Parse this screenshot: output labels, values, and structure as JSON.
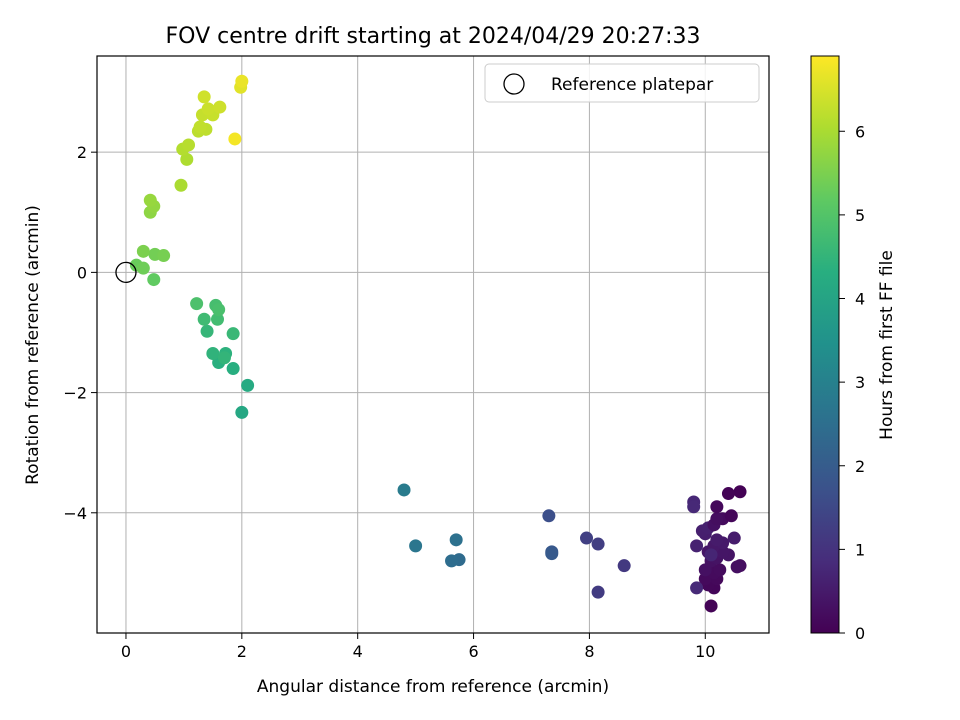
{
  "chart_data": {
    "type": "scatter",
    "title": "FOV centre drift starting at 2024/04/29 20:27:33",
    "xlabel": "Angular distance from reference (arcmin)",
    "ylabel": "Rotation from reference (arcmin)",
    "xlim": [
      -0.5,
      11.1
    ],
    "ylim": [
      -6.0,
      3.6
    ],
    "xticks": [
      0,
      2,
      4,
      6,
      8,
      10
    ],
    "yticks": [
      -4,
      -2,
      0,
      2
    ],
    "grid": true,
    "legend": {
      "position": "top-right",
      "entries": [
        "Reference platepar"
      ]
    },
    "reference_point": {
      "x": 0,
      "y": 0,
      "label": "Reference platepar"
    },
    "colorbar": {
      "label": "Hours from first FF file",
      "colormap": "viridis",
      "range": [
        0,
        6.9
      ],
      "ticks": [
        0,
        1,
        2,
        3,
        4,
        5,
        6
      ]
    },
    "points": [
      {
        "x": 10.1,
        "y": -5.55,
        "c": 0.05
      },
      {
        "x": 10.15,
        "y": -5.25,
        "c": 0.1
      },
      {
        "x": 10.05,
        "y": -5.2,
        "c": 0.12
      },
      {
        "x": 10.2,
        "y": -5.1,
        "c": 0.15
      },
      {
        "x": 10.0,
        "y": -5.1,
        "c": 0.18
      },
      {
        "x": 10.15,
        "y": -5.0,
        "c": 0.2
      },
      {
        "x": 10.25,
        "y": -4.95,
        "c": 0.22
      },
      {
        "x": 10.6,
        "y": -4.88,
        "c": 0.25
      },
      {
        "x": 10.55,
        "y": -4.9,
        "c": 0.28
      },
      {
        "x": 10.0,
        "y": -4.95,
        "c": 0.3
      },
      {
        "x": 10.1,
        "y": -4.8,
        "c": 0.32
      },
      {
        "x": 10.2,
        "y": -4.75,
        "c": 0.35
      },
      {
        "x": 10.4,
        "y": -4.7,
        "c": 0.38
      },
      {
        "x": 10.3,
        "y": -4.65,
        "c": 0.4
      },
      {
        "x": 10.05,
        "y": -4.65,
        "c": 0.42
      },
      {
        "x": 10.15,
        "y": -4.55,
        "c": 0.45
      },
      {
        "x": 10.3,
        "y": -4.5,
        "c": 0.48
      },
      {
        "x": 10.2,
        "y": -4.45,
        "c": 0.5
      },
      {
        "x": 10.5,
        "y": -4.42,
        "c": 0.52
      },
      {
        "x": 10.0,
        "y": -4.35,
        "c": 0.55
      },
      {
        "x": 9.95,
        "y": -4.3,
        "c": 0.58
      },
      {
        "x": 10.05,
        "y": -4.25,
        "c": 0.6
      },
      {
        "x": 10.15,
        "y": -4.2,
        "c": 0.3
      },
      {
        "x": 10.3,
        "y": -4.1,
        "c": 0.2
      },
      {
        "x": 10.2,
        "y": -4.1,
        "c": 0.25
      },
      {
        "x": 10.45,
        "y": -4.05,
        "c": 0.1
      },
      {
        "x": 10.2,
        "y": -3.9,
        "c": 0.15
      },
      {
        "x": 10.6,
        "y": -3.65,
        "c": 0.02
      },
      {
        "x": 10.4,
        "y": -3.68,
        "c": 0.05
      },
      {
        "x": 9.85,
        "y": -4.55,
        "c": 0.65
      },
      {
        "x": 9.8,
        "y": -3.82,
        "c": 0.75
      },
      {
        "x": 9.8,
        "y": -3.9,
        "c": 0.78
      },
      {
        "x": 9.85,
        "y": -5.25,
        "c": 0.8
      },
      {
        "x": 10.1,
        "y": -4.7,
        "c": 0.7
      },
      {
        "x": 8.6,
        "y": -4.88,
        "c": 1.15
      },
      {
        "x": 8.15,
        "y": -5.32,
        "c": 1.2
      },
      {
        "x": 8.15,
        "y": -4.52,
        "c": 1.25
      },
      {
        "x": 7.95,
        "y": -4.42,
        "c": 1.3
      },
      {
        "x": 7.3,
        "y": -4.05,
        "c": 1.65
      },
      {
        "x": 7.35,
        "y": -4.65,
        "c": 1.9
      },
      {
        "x": 7.35,
        "y": -4.68,
        "c": 1.95
      },
      {
        "x": 5.75,
        "y": -4.78,
        "c": 2.4
      },
      {
        "x": 5.62,
        "y": -4.8,
        "c": 2.45
      },
      {
        "x": 5.7,
        "y": -4.45,
        "c": 2.55
      },
      {
        "x": 5.0,
        "y": -4.55,
        "c": 2.7
      },
      {
        "x": 4.8,
        "y": -3.62,
        "c": 2.85
      },
      {
        "x": 2.0,
        "y": -2.33,
        "c": 4.1
      },
      {
        "x": 2.1,
        "y": -1.88,
        "c": 4.2
      },
      {
        "x": 1.85,
        "y": -1.6,
        "c": 4.3
      },
      {
        "x": 1.6,
        "y": -1.5,
        "c": 4.35
      },
      {
        "x": 1.72,
        "y": -1.35,
        "c": 4.4
      },
      {
        "x": 1.5,
        "y": -1.35,
        "c": 4.45
      },
      {
        "x": 1.7,
        "y": -1.42,
        "c": 4.5
      },
      {
        "x": 1.4,
        "y": -0.98,
        "c": 4.55
      },
      {
        "x": 1.85,
        "y": -1.02,
        "c": 4.6
      },
      {
        "x": 1.35,
        "y": -0.78,
        "c": 4.7
      },
      {
        "x": 1.58,
        "y": -0.78,
        "c": 4.75
      },
      {
        "x": 1.55,
        "y": -0.55,
        "c": 4.8
      },
      {
        "x": 1.6,
        "y": -0.62,
        "c": 4.85
      },
      {
        "x": 1.22,
        "y": -0.52,
        "c": 4.9
      },
      {
        "x": 0.48,
        "y": -0.12,
        "c": 5.2
      },
      {
        "x": 0.18,
        "y": 0.12,
        "c": 5.3
      },
      {
        "x": 0.3,
        "y": 0.07,
        "c": 5.35
      },
      {
        "x": 0.5,
        "y": 0.3,
        "c": 5.4
      },
      {
        "x": 0.65,
        "y": 0.28,
        "c": 5.45
      },
      {
        "x": 0.3,
        "y": 0.35,
        "c": 5.5
      },
      {
        "x": 0.42,
        "y": 1.0,
        "c": 5.7
      },
      {
        "x": 0.48,
        "y": 1.1,
        "c": 5.75
      },
      {
        "x": 0.42,
        "y": 1.2,
        "c": 5.8
      },
      {
        "x": 0.95,
        "y": 1.45,
        "c": 6.0
      },
      {
        "x": 1.05,
        "y": 1.88,
        "c": 6.05
      },
      {
        "x": 0.98,
        "y": 2.05,
        "c": 6.1
      },
      {
        "x": 1.08,
        "y": 2.12,
        "c": 6.15
      },
      {
        "x": 1.25,
        "y": 2.35,
        "c": 6.2
      },
      {
        "x": 1.38,
        "y": 2.38,
        "c": 6.22
      },
      {
        "x": 1.28,
        "y": 2.42,
        "c": 6.25
      },
      {
        "x": 1.32,
        "y": 2.62,
        "c": 6.3
      },
      {
        "x": 1.5,
        "y": 2.62,
        "c": 6.32
      },
      {
        "x": 1.42,
        "y": 2.72,
        "c": 6.35
      },
      {
        "x": 1.62,
        "y": 2.75,
        "c": 6.38
      },
      {
        "x": 1.35,
        "y": 2.92,
        "c": 6.4
      },
      {
        "x": 1.88,
        "y": 2.22,
        "c": 6.8
      },
      {
        "x": 1.98,
        "y": 3.08,
        "c": 6.6
      },
      {
        "x": 2.0,
        "y": 3.18,
        "c": 6.7
      }
    ]
  }
}
